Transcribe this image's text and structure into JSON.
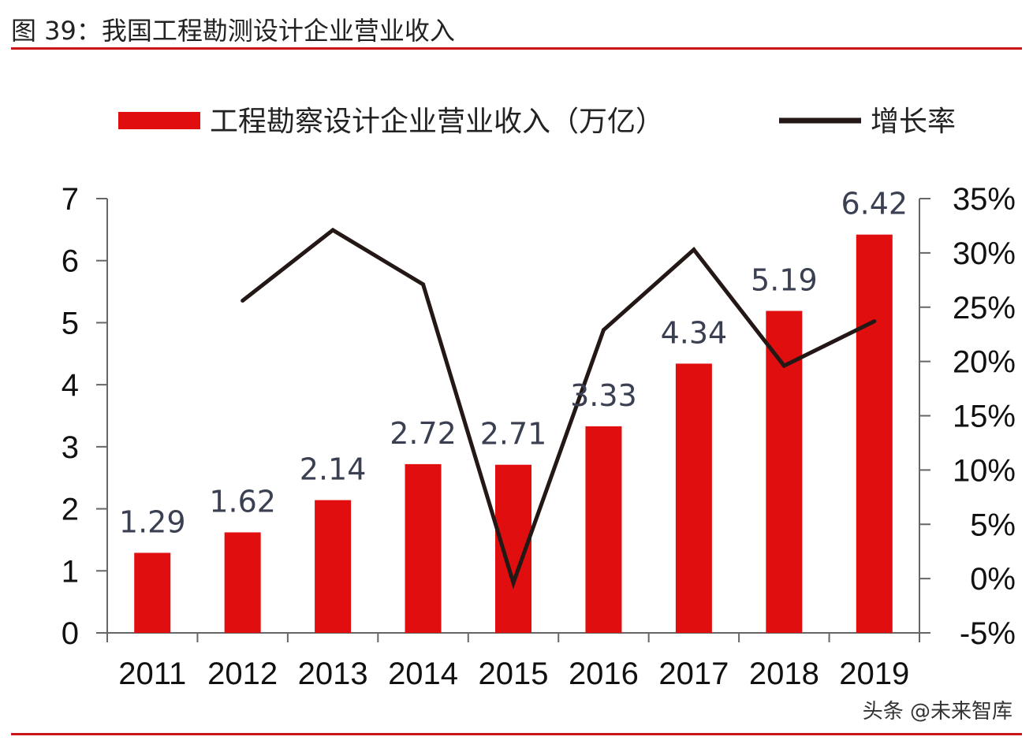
{
  "header": {
    "title": "图 39：我国工程勘测设计企业营业收入"
  },
  "watermark": "头条 @未来智库",
  "colors": {
    "bar": "#e00e0e",
    "line": "#231815",
    "accent": "#c9161d",
    "data_label": "#3a3f52"
  },
  "chart_data": {
    "type": "bar",
    "title": "",
    "xlabel": "",
    "ylabel": "",
    "categories": [
      "2011",
      "2012",
      "2013",
      "2014",
      "2015",
      "2016",
      "2017",
      "2018",
      "2019"
    ],
    "series": [
      {
        "name": "工程勘察设计企业营业收入（万亿）",
        "type": "bar",
        "axis": "left",
        "values": [
          1.29,
          1.62,
          2.14,
          2.72,
          2.71,
          3.33,
          4.34,
          5.19,
          6.42
        ],
        "labels": [
          "1.29",
          "1.62",
          "2.14",
          "2.72",
          "2.71",
          "3.33",
          "4.34",
          "5.19",
          "6.42"
        ]
      },
      {
        "name": "增长率",
        "type": "line",
        "axis": "right",
        "values": [
          null,
          25.6,
          32.1,
          27.1,
          -0.4,
          22.9,
          30.3,
          19.6,
          23.7
        ]
      }
    ],
    "ylim": [
      0,
      7
    ],
    "y_ticks": [
      "0",
      "1",
      "2",
      "3",
      "4",
      "5",
      "6",
      "7"
    ],
    "y2lim": [
      -5,
      35
    ],
    "y2_ticks": [
      "-5%",
      "0%",
      "5%",
      "10%",
      "15%",
      "20%",
      "25%",
      "30%",
      "35%"
    ],
    "legend_position": "top",
    "grid": false
  }
}
